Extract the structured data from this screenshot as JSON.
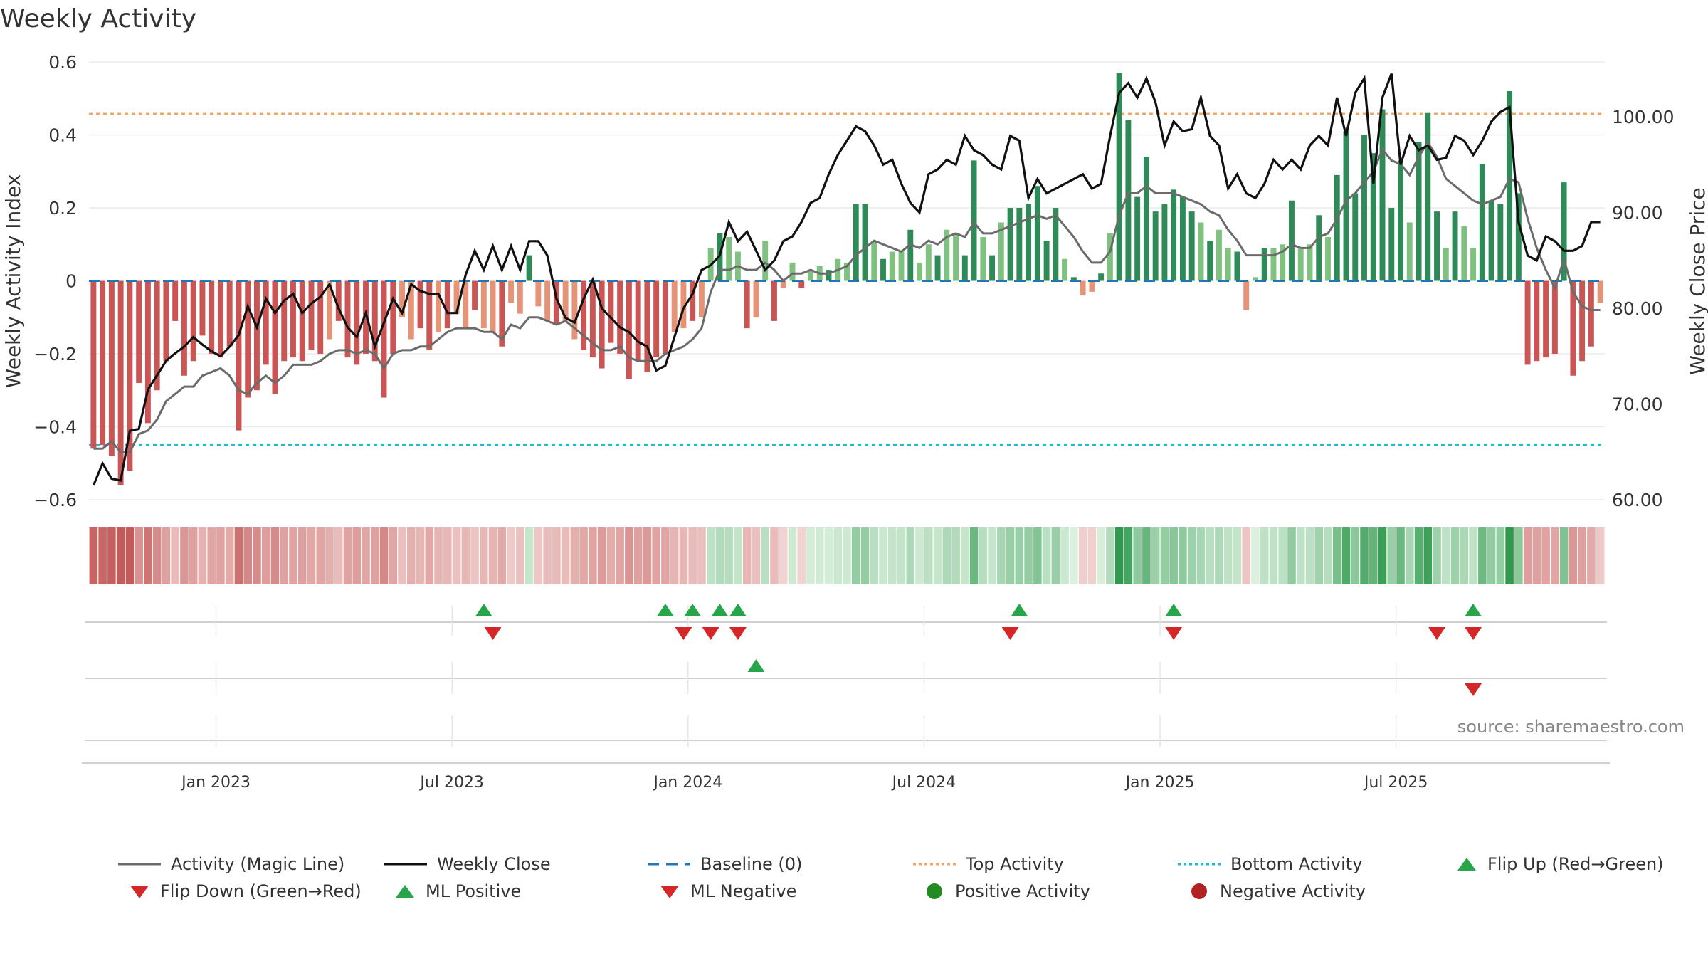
{
  "chart_data": {
    "type": "bar",
    "title": "Weekly Activity",
    "source": "source: sharemaestro.com",
    "y_left_label": "Weekly Activity Index",
    "y_right_label": "Weekly Close Price",
    "y_left_range": [
      -0.6,
      0.6
    ],
    "y_left_ticks": [
      "0.6",
      "0.4",
      "0.2",
      "0",
      "−0.2",
      "−0.4",
      "−0.6"
    ],
    "y_right_range": [
      60,
      106
    ],
    "y_right_ticks": [
      "100.00",
      "90.00",
      "80.00",
      "70.00",
      "60.00"
    ],
    "x_tick_labels": [
      "Jan 2023",
      "Jul 2023",
      "Jan 2024",
      "Jul 2024",
      "Jan 2025",
      "Jul 2025"
    ],
    "x_tick_weeks": [
      14,
      40,
      66,
      92,
      118,
      144
    ],
    "top_activity": 0.458,
    "bottom_activity": -0.45,
    "activity": [
      -0.46,
      -0.45,
      -0.48,
      -0.56,
      -0.52,
      -0.28,
      -0.39,
      -0.3,
      -0.22,
      -0.11,
      -0.26,
      -0.22,
      -0.15,
      -0.2,
      -0.21,
      -0.18,
      -0.41,
      -0.32,
      -0.3,
      -0.23,
      -0.31,
      -0.22,
      -0.21,
      -0.22,
      -0.19,
      -0.2,
      -0.16,
      -0.11,
      -0.21,
      -0.23,
      -0.2,
      -0.22,
      -0.32,
      -0.2,
      -0.1,
      -0.16,
      -0.13,
      -0.19,
      -0.14,
      -0.13,
      -0.09,
      -0.13,
      -0.08,
      -0.13,
      -0.14,
      -0.18,
      -0.06,
      -0.09,
      0.07,
      -0.07,
      -0.11,
      -0.12,
      -0.11,
      -0.16,
      -0.19,
      -0.21,
      -0.24,
      -0.17,
      -0.2,
      -0.27,
      -0.22,
      -0.25,
      -0.21,
      -0.2,
      -0.14,
      -0.13,
      -0.11,
      -0.1,
      0.09,
      0.13,
      0.12,
      0.08,
      -0.13,
      -0.1,
      0.11,
      -0.11,
      -0.02,
      0.05,
      -0.02,
      0.03,
      0.04,
      0.03,
      0.06,
      0.05,
      0.21,
      0.21,
      0.11,
      0.06,
      0.08,
      0.08,
      0.14,
      0.05,
      0.1,
      0.07,
      0.14,
      0.13,
      0.07,
      0.33,
      0.12,
      0.07,
      0.16,
      0.2,
      0.2,
      0.21,
      0.26,
      0.11,
      0.2,
      0.06,
      0.01,
      -0.04,
      -0.03,
      0.02,
      0.13,
      0.57,
      0.44,
      0.23,
      0.34,
      0.19,
      0.21,
      0.25,
      0.23,
      0.19,
      0.16,
      0.11,
      0.14,
      0.09,
      0.08,
      -0.08,
      0.01,
      0.09,
      0.09,
      0.1,
      0.22,
      0.09,
      0.1,
      0.18,
      0.12,
      0.29,
      0.41,
      0.24,
      0.4,
      0.35,
      0.47,
      0.2,
      0.33,
      0.16,
      0.38,
      0.46,
      0.19,
      0.09,
      0.19,
      0.15,
      0.09,
      0.32,
      0.22,
      0.21,
      0.52,
      0.24,
      -0.23,
      -0.22,
      -0.21,
      -0.2,
      0.27,
      -0.26,
      -0.22,
      -0.18,
      -0.06
    ],
    "magic_line": [
      -0.46,
      -0.46,
      -0.44,
      -0.47,
      -0.47,
      -0.42,
      -0.41,
      -0.38,
      -0.33,
      -0.31,
      -0.29,
      -0.29,
      -0.26,
      -0.25,
      -0.24,
      -0.26,
      -0.3,
      -0.31,
      -0.28,
      -0.26,
      -0.28,
      -0.26,
      -0.23,
      -0.23,
      -0.23,
      -0.22,
      -0.2,
      -0.19,
      -0.19,
      -0.2,
      -0.19,
      -0.2,
      -0.24,
      -0.2,
      -0.19,
      -0.19,
      -0.18,
      -0.18,
      -0.16,
      -0.14,
      -0.13,
      -0.13,
      -0.13,
      -0.14,
      -0.14,
      -0.16,
      -0.12,
      -0.13,
      -0.1,
      -0.1,
      -0.11,
      -0.12,
      -0.11,
      -0.13,
      -0.15,
      -0.17,
      -0.19,
      -0.19,
      -0.18,
      -0.21,
      -0.22,
      -0.22,
      -0.22,
      -0.2,
      -0.19,
      -0.18,
      -0.16,
      -0.13,
      -0.03,
      0.03,
      0.03,
      0.04,
      0.03,
      0.03,
      0.05,
      0.03,
      0.0,
      0.02,
      0.02,
      0.03,
      0.02,
      0.02,
      0.03,
      0.04,
      0.07,
      0.09,
      0.11,
      0.1,
      0.09,
      0.08,
      0.1,
      0.09,
      0.11,
      0.1,
      0.12,
      0.13,
      0.12,
      0.16,
      0.13,
      0.13,
      0.14,
      0.15,
      0.16,
      0.17,
      0.18,
      0.17,
      0.18,
      0.15,
      0.12,
      0.08,
      0.05,
      0.05,
      0.08,
      0.18,
      0.24,
      0.24,
      0.26,
      0.24,
      0.24,
      0.24,
      0.23,
      0.22,
      0.21,
      0.19,
      0.18,
      0.14,
      0.11,
      0.07,
      0.07,
      0.07,
      0.07,
      0.08,
      0.1,
      0.09,
      0.09,
      0.12,
      0.13,
      0.17,
      0.22,
      0.24,
      0.27,
      0.3,
      0.36,
      0.33,
      0.32,
      0.29,
      0.34,
      0.38,
      0.34,
      0.28,
      0.26,
      0.24,
      0.22,
      0.21,
      0.22,
      0.23,
      0.28,
      0.27,
      0.17,
      0.09,
      0.03,
      -0.02,
      0.06,
      -0.03,
      -0.07,
      -0.08,
      -0.08
    ],
    "weekly_close": [
      61.5,
      63.8,
      62.2,
      62.0,
      67.2,
      67.4,
      71.5,
      73.0,
      74.5,
      75.3,
      76.0,
      77.0,
      76.2,
      75.5,
      75.0,
      76.0,
      77.2,
      80.2,
      78.0,
      81.0,
      79.5,
      80.8,
      81.5,
      79.5,
      80.5,
      81.2,
      82.5,
      80.0,
      78.0,
      77.0,
      79.5,
      76.0,
      78.5,
      81.0,
      79.5,
      82.5,
      81.8,
      81.5,
      81.5,
      79.5,
      79.5,
      83.5,
      86.0,
      84.0,
      86.5,
      84.0,
      86.5,
      84.0,
      87.0,
      87.0,
      85.5,
      81.0,
      79.0,
      78.5,
      81.0,
      83.0,
      80.0,
      79.0,
      78.0,
      77.5,
      76.5,
      76.0,
      73.5,
      74.0,
      77.0,
      80.0,
      81.5,
      84.0,
      84.5,
      85.5,
      89.0,
      87.0,
      88.0,
      86.0,
      84.0,
      85.0,
      87.0,
      87.5,
      89.0,
      91.0,
      91.5,
      94.0,
      96.0,
      97.5,
      99.0,
      98.5,
      97.0,
      95.0,
      95.5,
      93.0,
      91.0,
      90.0,
      94.0,
      94.5,
      95.5,
      95.0,
      98.0,
      96.5,
      96.0,
      95.0,
      94.5,
      98.0,
      97.5,
      91.5,
      93.5,
      92.0,
      92.5,
      93.0,
      93.5,
      94.0,
      92.5,
      93.0,
      98.0,
      102.5,
      103.5,
      102.0,
      104.0,
      101.5,
      97.0,
      99.5,
      98.5,
      98.7,
      102.0,
      98.0,
      97.0,
      92.5,
      94.0,
      92.0,
      91.5,
      93.0,
      95.5,
      94.5,
      95.5,
      94.5,
      97.0,
      98.0,
      97.0,
      102.0,
      98.0,
      102.5,
      104.0,
      93.0,
      102.0,
      104.5,
      95.0,
      98.0,
      96.5,
      97.0,
      95.5,
      95.7,
      98.0,
      97.5,
      96.0,
      97.5,
      99.5,
      100.5,
      101.0,
      89.0,
      85.5,
      85.0,
      87.5,
      87.0,
      86.0,
      86.0,
      86.5,
      89.0,
      89.0
    ],
    "flip_up_weeks": [
      43,
      63,
      66,
      69,
      71,
      102,
      119,
      152
    ],
    "flip_down_weeks": [
      44,
      65,
      68,
      71,
      101,
      119,
      148,
      152
    ],
    "ml_positive_weeks": [
      73
    ],
    "ml_negative_weeks": [
      152
    ],
    "colors": {
      "pos_dark": "#2e8b57",
      "pos_light": "#7fc27f",
      "neg_dark": "#c95555",
      "neg_light": "#e59478",
      "magic_line": "#6b6b6b",
      "close": "#111111",
      "baseline": "#1f77b4",
      "top": "#f4a460",
      "bottom": "#17becf",
      "up": "#27a54a",
      "down": "#d62728"
    }
  },
  "legend": [
    {
      "icon": "line-gray",
      "label": "Activity (Magic Line)"
    },
    {
      "icon": "line-black",
      "label": "Weekly Close"
    },
    {
      "icon": "dash-blue",
      "label": "Baseline (0)"
    },
    {
      "icon": "dot-orange",
      "label": "Top Activity"
    },
    {
      "icon": "dot-cyan",
      "label": "Bottom Activity"
    },
    {
      "icon": "triangle-up-green",
      "label": "Flip Up (Red→Green)"
    },
    {
      "icon": "triangle-down-red",
      "label": "Flip Down (Green→Red)"
    },
    {
      "icon": "triangle-up-green",
      "label": "ML Positive"
    },
    {
      "icon": "triangle-down-red",
      "label": "ML Negative"
    },
    {
      "icon": "circle-green",
      "label": "Positive Activity"
    },
    {
      "icon": "circle-red",
      "label": "Negative Activity"
    }
  ]
}
